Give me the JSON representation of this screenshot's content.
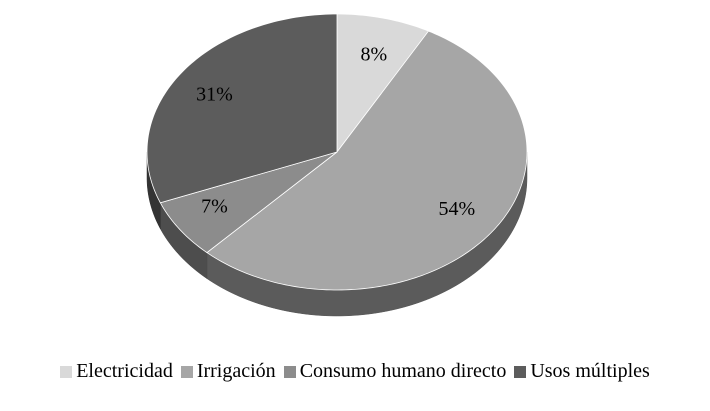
{
  "chart_data": {
    "type": "pie",
    "categories": [
      "Electricidad",
      "Irrigación",
      "Consumo humano directo",
      "Usos múltiples"
    ],
    "values": [
      8,
      54,
      7,
      31
    ],
    "value_labels": [
      "8%",
      "54%",
      "7%",
      "31%"
    ],
    "colors": [
      "#d9d9d9",
      "#a6a6a6",
      "#8c8c8c",
      "#5c5c5c"
    ],
    "three_d": true,
    "legend": "bottom"
  }
}
